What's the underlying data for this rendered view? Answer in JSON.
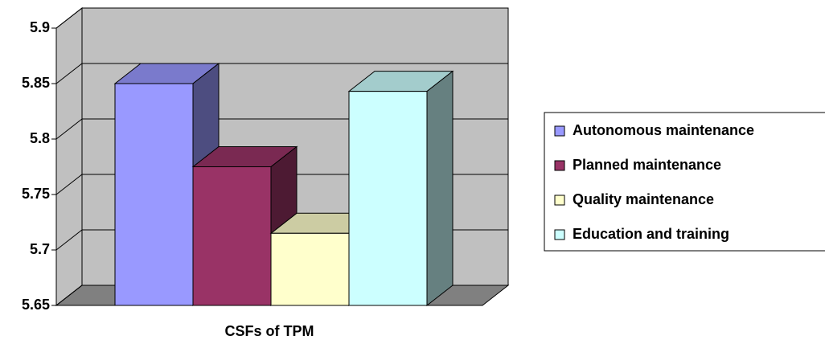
{
  "chart_data": {
    "type": "bar3d",
    "x_label": "CSFs of TPM",
    "series": [
      {
        "name": "Autonomous maintenance",
        "color": "#9999ff",
        "values": [
          5.85
        ]
      },
      {
        "name": "Planned maintenance",
        "color": "#993366",
        "values": [
          5.775
        ]
      },
      {
        "name": "Quality maintenance",
        "color": "#ffffcc",
        "values": [
          5.715
        ]
      },
      {
        "name": "Education and training",
        "color": "#ccffff",
        "values": [
          5.843
        ]
      }
    ],
    "ylim": [
      5.65,
      5.9
    ],
    "yticks": [
      5.65,
      5.7,
      5.75,
      5.8,
      5.85,
      5.9
    ],
    "grid": true,
    "legend": "right"
  }
}
